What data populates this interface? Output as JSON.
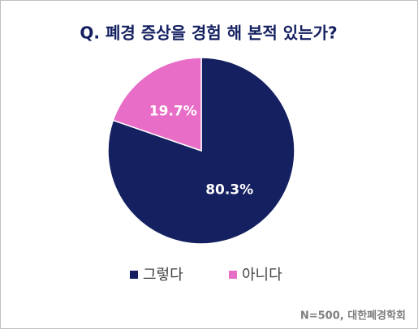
{
  "chart_data": {
    "type": "pie",
    "title": "Q. 폐경 증상을 경험 해 본적 있는가?",
    "categories": [
      "그렇다",
      "아니다"
    ],
    "values": [
      80.3,
      19.7
    ],
    "value_labels": [
      "80.3%",
      "19.7%"
    ],
    "colors": [
      "#142060",
      "#e86dc6"
    ],
    "note": "N=500, 대한폐경학회"
  }
}
